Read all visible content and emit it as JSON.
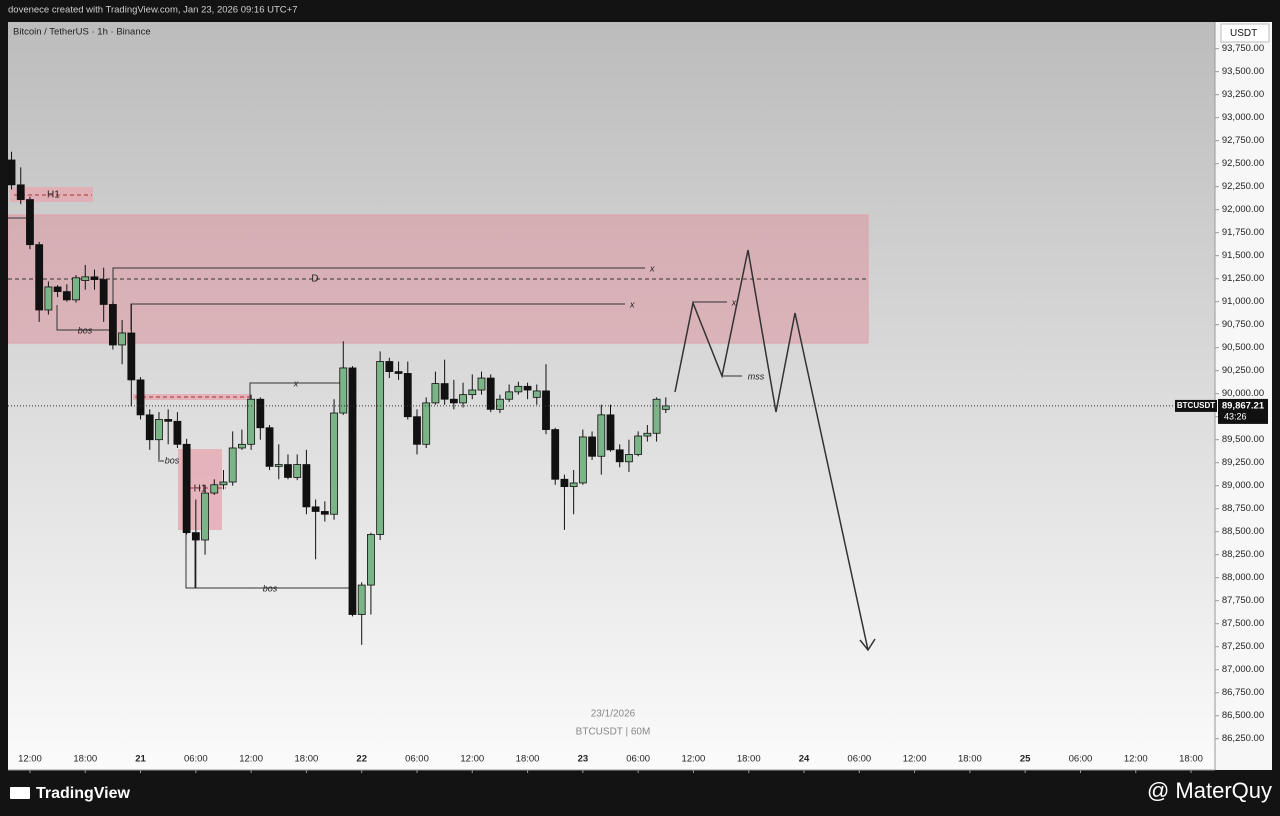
{
  "page": {
    "header": "dovenece created with TradingView.com, Jan 23, 2026 09:16 UTC+7",
    "brand": "TradingView",
    "credit": "@ MaterQuy"
  },
  "chart_data": {
    "type": "candlestick",
    "title": "Bitcoin / TetherUS · 1h · Binance",
    "currency": "USDT",
    "watermark": [
      "23/1/2026",
      "BTCUSDT | 60M"
    ],
    "symbol": "BTCUSDT",
    "last_price_label": "89,867.21",
    "countdown": "43:26",
    "up_color": "#7bb487",
    "down_color": "#111111",
    "grid": false,
    "annotations": [
      "H1",
      "D",
      "x",
      "x",
      "bos",
      "x",
      "bos",
      "H1",
      "bos",
      "x",
      "mss"
    ],
    "x": [
      "2026-01-20 10:00",
      "2026-01-20 11:00",
      "2026-01-20 12:00",
      "2026-01-20 13:00",
      "2026-01-20 14:00",
      "2026-01-20 15:00",
      "2026-01-20 16:00",
      "2026-01-20 17:00",
      "2026-01-20 18:00",
      "2026-01-20 19:00",
      "2026-01-20 20:00",
      "2026-01-20 21:00",
      "2026-01-20 22:00",
      "2026-01-20 23:00",
      "2026-01-21 00:00",
      "2026-01-21 01:00",
      "2026-01-21 02:00",
      "2026-01-21 03:00",
      "2026-01-21 04:00",
      "2026-01-21 05:00",
      "2026-01-21 06:00",
      "2026-01-21 07:00",
      "2026-01-21 08:00",
      "2026-01-21 09:00",
      "2026-01-21 10:00",
      "2026-01-21 11:00",
      "2026-01-21 12:00",
      "2026-01-21 13:00",
      "2026-01-21 14:00",
      "2026-01-21 15:00",
      "2026-01-21 16:00",
      "2026-01-21 17:00",
      "2026-01-21 18:00",
      "2026-01-21 19:00",
      "2026-01-21 20:00",
      "2026-01-21 21:00",
      "2026-01-21 22:00",
      "2026-01-21 23:00",
      "2026-01-22 00:00",
      "2026-01-22 01:00",
      "2026-01-22 02:00",
      "2026-01-22 03:00",
      "2026-01-22 04:00",
      "2026-01-22 05:00",
      "2026-01-22 06:00",
      "2026-01-22 07:00",
      "2026-01-22 08:00",
      "2026-01-22 09:00",
      "2026-01-22 10:00",
      "2026-01-22 11:00",
      "2026-01-22 12:00",
      "2026-01-22 13:00",
      "2026-01-22 14:00",
      "2026-01-22 15:00",
      "2026-01-22 16:00",
      "2026-01-22 17:00",
      "2026-01-22 18:00",
      "2026-01-22 19:00",
      "2026-01-22 20:00",
      "2026-01-22 21:00",
      "2026-01-22 22:00",
      "2026-01-22 23:00",
      "2026-01-23 00:00",
      "2026-01-23 01:00",
      "2026-01-23 02:00",
      "2026-01-23 03:00",
      "2026-01-23 04:00",
      "2026-01-23 05:00",
      "2026-01-23 06:00",
      "2026-01-23 07:00",
      "2026-01-23 08:00",
      "2026-01-23 09:00"
    ],
    "open": [
      92540,
      92270,
      92110,
      91620,
      90910,
      91160,
      91110,
      91020,
      91230,
      91270,
      91240,
      90970,
      90530,
      90660,
      90150,
      89770,
      89500,
      89720,
      89700,
      89450,
      88490,
      88410,
      88920,
      89010,
      89040,
      89410,
      89450,
      89940,
      89630,
      89210,
      89230,
      89090,
      89230,
      88770,
      88720,
      88690,
      89790,
      90280,
      87600,
      87920,
      88470,
      90350,
      90240,
      90220,
      89750,
      89450,
      89900,
      90110,
      89940,
      89900,
      89990,
      90040,
      90170,
      89830,
      89940,
      90020,
      90080,
      89960,
      90030,
      89610,
      89070,
      88990,
      89030,
      89530,
      89320,
      89770,
      89390,
      89260,
      89340,
      89540,
      89570,
      89830
    ],
    "high": [
      92630,
      92460,
      92140,
      91650,
      91220,
      91180,
      91190,
      91290,
      91400,
      91350,
      91370,
      91000,
      90800,
      90970,
      90180,
      89830,
      89800,
      89830,
      89800,
      89510,
      88850,
      89010,
      89070,
      89170,
      89590,
      89610,
      89990,
      89960,
      89660,
      89450,
      89340,
      89340,
      89390,
      88850,
      88830,
      89940,
      90570,
      90300,
      87950,
      88490,
      90460,
      90390,
      90350,
      90350,
      89830,
      89960,
      90240,
      90370,
      90150,
      90120,
      90210,
      90240,
      90210,
      89990,
      90100,
      90130,
      90120,
      90100,
      90320,
      89630,
      89120,
      89170,
      89610,
      89590,
      89880,
      89880,
      89450,
      89500,
      89590,
      89660,
      89960,
      89960
    ],
    "low": [
      92220,
      92060,
      91570,
      90780,
      90860,
      91050,
      91000,
      90990,
      91130,
      91130,
      90780,
      90480,
      90320,
      89860,
      89720,
      89390,
      89280,
      89450,
      89410,
      88470,
      87890,
      88250,
      88900,
      88960,
      89000,
      89390,
      89390,
      89500,
      89170,
      89070,
      89070,
      89060,
      88690,
      88200,
      88610,
      88630,
      89770,
      87580,
      87270,
      87600,
      88410,
      90170,
      90150,
      89720,
      89340,
      89410,
      89880,
      89880,
      89830,
      89850,
      89940,
      89990,
      89800,
      89790,
      89910,
      89990,
      89940,
      89880,
      89560,
      89010,
      88520,
      88690,
      89010,
      89280,
      89120,
      89370,
      89200,
      89150,
      89320,
      89480,
      89480,
      89790
    ],
    "close": [
      92270,
      92110,
      91620,
      90910,
      91160,
      91110,
      91020,
      91260,
      91270,
      91240,
      90970,
      90530,
      90660,
      90150,
      89770,
      89500,
      89720,
      89700,
      89450,
      88490,
      88410,
      88920,
      89010,
      89040,
      89410,
      89450,
      89940,
      89630,
      89210,
      89230,
      89090,
      89230,
      88770,
      88720,
      88690,
      89790,
      90280,
      87600,
      87920,
      88470,
      90350,
      90240,
      90220,
      89750,
      89450,
      89900,
      90110,
      89940,
      89900,
      89990,
      90040,
      90170,
      89830,
      89940,
      90020,
      90080,
      90040,
      90030,
      89610,
      89070,
      88990,
      89030,
      89530,
      89320,
      89770,
      89390,
      89260,
      89340,
      89540,
      89570,
      89940,
      89867.21
    ],
    "xlim": [
      "2026-01-20 09:37",
      "2026-01-25 20:36"
    ],
    "xticks": [
      {
        "value": "2026-01-20 12:00",
        "label": "12:00"
      },
      {
        "value": "2026-01-20 18:00",
        "label": "18:00"
      },
      {
        "value": "2026-01-21 00:00",
        "label": "21"
      },
      {
        "value": "2026-01-21 06:00",
        "label": "06:00"
      },
      {
        "value": "2026-01-21 12:00",
        "label": "12:00"
      },
      {
        "value": "2026-01-21 18:00",
        "label": "18:00"
      },
      {
        "value": "2026-01-22 00:00",
        "label": "22"
      },
      {
        "value": "2026-01-22 06:00",
        "label": "06:00"
      },
      {
        "value": "2026-01-22 12:00",
        "label": "12:00"
      },
      {
        "value": "2026-01-22 18:00",
        "label": "18:00"
      },
      {
        "value": "2026-01-23 00:00",
        "label": "23"
      },
      {
        "value": "2026-01-23 06:00",
        "label": "06:00"
      },
      {
        "value": "2026-01-23 12:00",
        "label": "12:00"
      },
      {
        "value": "2026-01-23 18:00",
        "label": "18:00"
      },
      {
        "value": "2026-01-24 00:00",
        "label": "24"
      },
      {
        "value": "2026-01-24 06:00",
        "label": "06:00"
      },
      {
        "value": "2026-01-24 12:00",
        "label": "12:00"
      },
      {
        "value": "2026-01-24 18:00",
        "label": "18:00"
      },
      {
        "value": "2026-01-25 00:00",
        "label": "25"
      },
      {
        "value": "2026-01-25 06:00",
        "label": "06:00"
      },
      {
        "value": "2026-01-25 12:00",
        "label": "12:00"
      },
      {
        "value": "2026-01-25 18:00",
        "label": "18:00"
      }
    ],
    "ylim": [
      85910,
      94040
    ],
    "yticks": [
      {
        "value": 86250,
        "label": "86,250.00"
      },
      {
        "value": 86500,
        "label": "86,500.00"
      },
      {
        "value": 86750,
        "label": "86,750.00"
      },
      {
        "value": 87000,
        "label": "87,000.00"
      },
      {
        "value": 87250,
        "label": "87,250.00"
      },
      {
        "value": 87500,
        "label": "87,500.00"
      },
      {
        "value": 87750,
        "label": "87,750.00"
      },
      {
        "value": 88000,
        "label": "88,000.00"
      },
      {
        "value": 88250,
        "label": "88,250.00"
      },
      {
        "value": 88500,
        "label": "88,500.00"
      },
      {
        "value": 88750,
        "label": "88,750.00"
      },
      {
        "value": 89000,
        "label": "89,000.00"
      },
      {
        "value": 89250,
        "label": "89,250.00"
      },
      {
        "value": 89500,
        "label": "89,500.00"
      },
      {
        "value": 89750,
        "label": "89,750.00"
      },
      {
        "value": 90000,
        "label": "90,000.00"
      },
      {
        "value": 90250,
        "label": "90,250.00"
      },
      {
        "value": 90500,
        "label": "90,500.00"
      },
      {
        "value": 90750,
        "label": "90,750.00"
      },
      {
        "value": 91000,
        "label": "91,000.00"
      },
      {
        "value": 91250,
        "label": "91,250.00"
      },
      {
        "value": 91500,
        "label": "91,500.00"
      },
      {
        "value": 91750,
        "label": "91,750.00"
      },
      {
        "value": 92000,
        "label": "92,000.00"
      },
      {
        "value": 92250,
        "label": "92,250.00"
      },
      {
        "value": 92500,
        "label": "92,500.00"
      },
      {
        "value": 92750,
        "label": "92,750.00"
      },
      {
        "value": 93000,
        "label": "93,000.00"
      },
      {
        "value": 93250,
        "label": "93,250.00"
      },
      {
        "value": 93500,
        "label": "93,500.00"
      },
      {
        "value": 93750,
        "label": "93,750.00"
      }
    ]
  }
}
